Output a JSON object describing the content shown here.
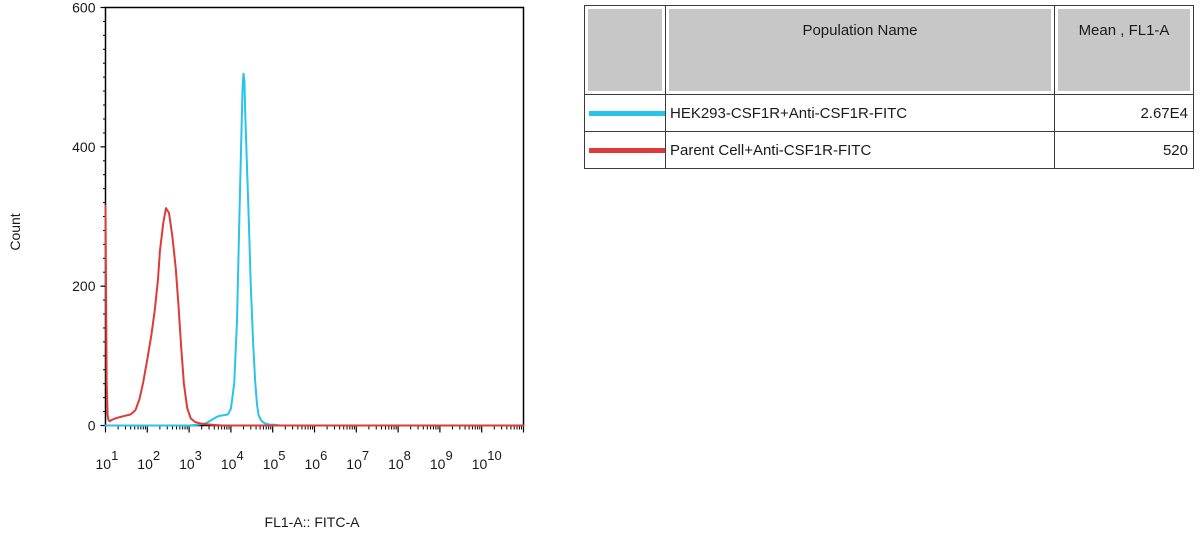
{
  "chart_data": {
    "type": "line",
    "xlabel": "FL1-A:: FITC-A",
    "ylabel": "Count",
    "x_scale": "log",
    "xlim": [
      10,
      100000000000
    ],
    "ylim": [
      0,
      600
    ],
    "y_ticks": [
      0,
      200,
      400,
      600
    ],
    "x_tick_labels": [
      {
        "base": "10",
        "exp": "1"
      },
      {
        "base": "10",
        "exp": "2"
      },
      {
        "base": "10",
        "exp": "3"
      },
      {
        "base": "10",
        "exp": "4"
      },
      {
        "base": "10",
        "exp": "5"
      },
      {
        "base": "10",
        "exp": "6"
      },
      {
        "base": "10",
        "exp": "7"
      },
      {
        "base": "10",
        "exp": "8"
      },
      {
        "base": "10",
        "exp": "9"
      },
      {
        "base": "10",
        "exp": "10"
      }
    ],
    "grid": false,
    "series": [
      {
        "name": "HEK293-CSF1R+Anti-CSF1R-FITC",
        "color": "#29c3ec",
        "x": [
          10,
          100,
          500,
          1000,
          1600,
          2500,
          3500,
          4500,
          5500,
          7000,
          8500,
          10000,
          12000,
          14000,
          16000,
          18000,
          19000,
          20000,
          21000,
          22000,
          24000,
          27000,
          30000,
          34000,
          38000,
          42000,
          46000,
          52000,
          58000,
          65000,
          75000,
          90000,
          110000,
          150000,
          300000,
          1000000,
          100000000000
        ],
        "y": [
          0,
          0,
          0,
          0,
          1,
          3,
          8,
          12,
          14,
          15,
          16,
          24,
          60,
          150,
          300,
          430,
          485,
          505,
          495,
          450,
          380,
          290,
          200,
          120,
          65,
          30,
          15,
          8,
          5,
          3,
          2,
          1,
          1,
          0,
          0,
          0,
          0
        ]
      },
      {
        "name": "Parent Cell+Anti-CSF1R-FITC",
        "color": "#dd3a3a",
        "x": [
          10,
          10.3,
          10.7,
          11.2,
          11.8,
          12.5,
          14,
          17,
          22,
          30,
          40,
          52,
          65,
          80,
          100,
          125,
          150,
          180,
          200,
          240,
          280,
          330,
          400,
          480,
          560,
          650,
          750,
          900,
          1100,
          1400,
          1800,
          2400,
          3500,
          6000,
          20000,
          100000000000
        ],
        "y": [
          315,
          200,
          60,
          15,
          8,
          6,
          8,
          10,
          12,
          14,
          16,
          22,
          38,
          62,
          95,
          130,
          165,
          210,
          250,
          290,
          312,
          305,
          270,
          225,
          170,
          110,
          60,
          25,
          10,
          5,
          3,
          2,
          1,
          0,
          0,
          0
        ]
      }
    ]
  },
  "legend_table": {
    "headers": [
      "Population Name",
      "Mean , FL1-A"
    ],
    "rows": [
      {
        "name": "HEK293-CSF1R+Anti-CSF1R-FITC",
        "value": "2.67E4",
        "color": "#29c3ec"
      },
      {
        "name": "Parent Cell+Anti-CSF1R-FITC",
        "value": "520",
        "color": "#dd3a3a"
      }
    ]
  }
}
